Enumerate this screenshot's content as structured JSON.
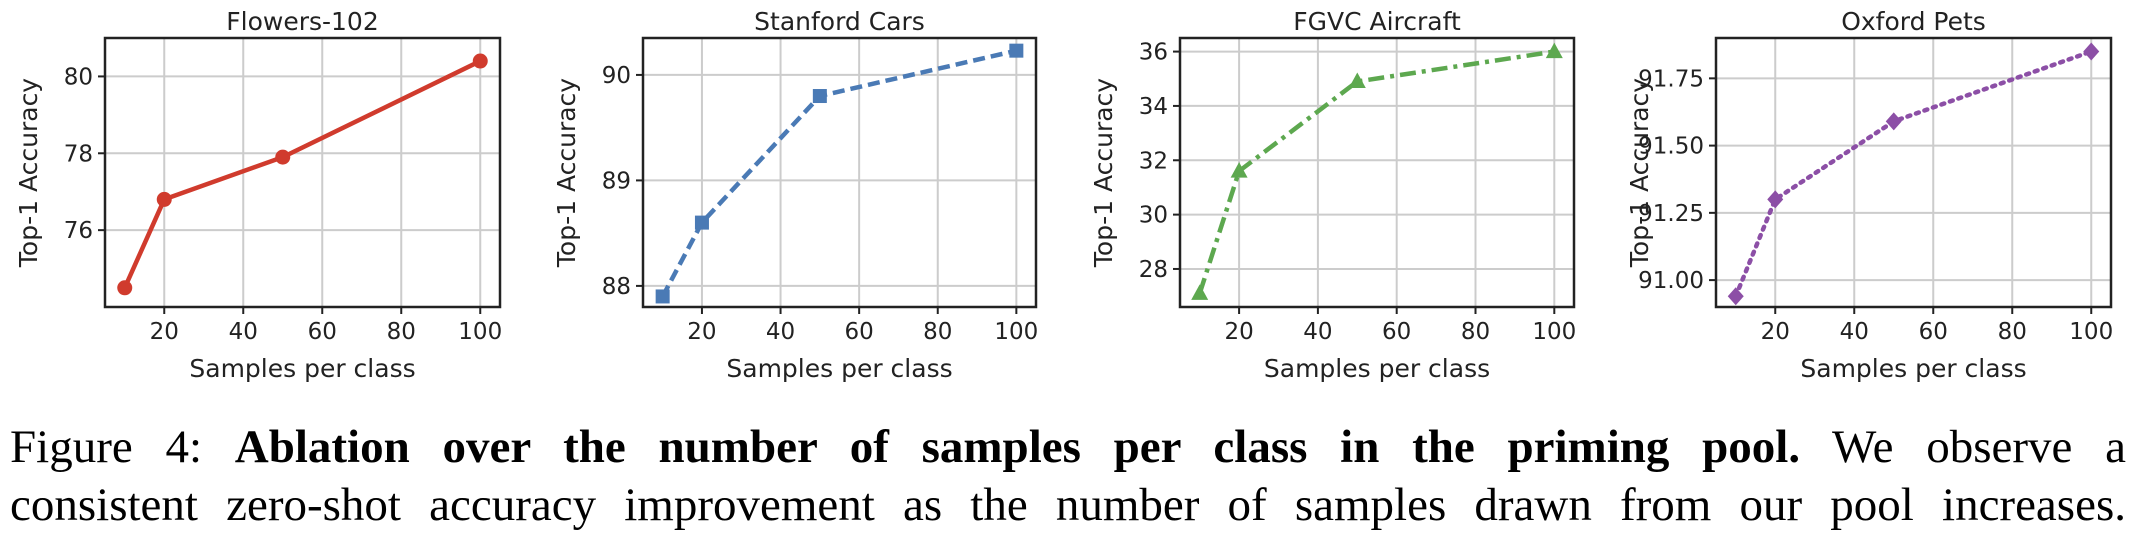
{
  "chart_data": [
    {
      "type": "line",
      "title": "Flowers-102",
      "xlabel": "Samples per class",
      "ylabel": "Top-1 Accuracy",
      "x": [
        10,
        20,
        50,
        100
      ],
      "series": [
        {
          "values": [
            74.5,
            76.8,
            77.9,
            80.4
          ],
          "color": "#d03b2d",
          "marker": "circle",
          "linestyle": "solid"
        }
      ],
      "xlim": [
        5,
        105
      ],
      "ylim": [
        74.0,
        81.0
      ],
      "xticks": [
        20,
        40,
        60,
        80,
        100
      ],
      "yticks": [
        76,
        78,
        80
      ],
      "grid": true
    },
    {
      "type": "line",
      "title": "Stanford Cars",
      "xlabel": "Samples per class",
      "ylabel": "Top-1 Accuracy",
      "x": [
        10,
        20,
        50,
        100
      ],
      "series": [
        {
          "values": [
            87.9,
            88.6,
            89.8,
            90.23
          ],
          "color": "#4a7ab5",
          "marker": "square",
          "linestyle": "dashed"
        }
      ],
      "xlim": [
        5,
        105
      ],
      "ylim": [
        87.8,
        90.35
      ],
      "xticks": [
        20,
        40,
        60,
        80,
        100
      ],
      "yticks": [
        88,
        89,
        90
      ],
      "grid": true
    },
    {
      "type": "line",
      "title": "FGVC Aircraft",
      "xlabel": "Samples per class",
      "ylabel": "Top-1 Accuracy",
      "x": [
        10,
        20,
        50,
        100
      ],
      "series": [
        {
          "values": [
            27.1,
            31.6,
            34.9,
            36.0
          ],
          "color": "#5da84f",
          "marker": "triangle",
          "linestyle": "dashdot"
        }
      ],
      "xlim": [
        5,
        105
      ],
      "ylim": [
        26.6,
        36.5
      ],
      "xticks": [
        20,
        40,
        60,
        80,
        100
      ],
      "yticks": [
        28,
        30,
        32,
        34,
        36
      ],
      "grid": true
    },
    {
      "type": "line",
      "title": "Oxford Pets",
      "xlabel": "Samples per class",
      "ylabel": "Top-1 Accuracy",
      "x": [
        10,
        20,
        50,
        100
      ],
      "series": [
        {
          "values": [
            90.94,
            91.3,
            91.59,
            91.85
          ],
          "color": "#8c4fa6",
          "marker": "diamond",
          "linestyle": "dotted"
        }
      ],
      "xlim": [
        5,
        105
      ],
      "ylim": [
        90.9,
        91.9
      ],
      "xticks": [
        20,
        40,
        60,
        80,
        100
      ],
      "yticks": [
        91.0,
        91.25,
        91.5,
        91.75
      ],
      "ytick_labels": [
        "91.00",
        "91.25",
        "91.50",
        "91.75"
      ],
      "grid": true
    }
  ],
  "caption": {
    "label": "Figure 4:",
    "bold": "Ablation over the number of samples per class in the priming pool.",
    "line1_rest": "We observe a",
    "line2": "consistent zero-shot accuracy improvement as the number of samples drawn from our pool increases."
  }
}
